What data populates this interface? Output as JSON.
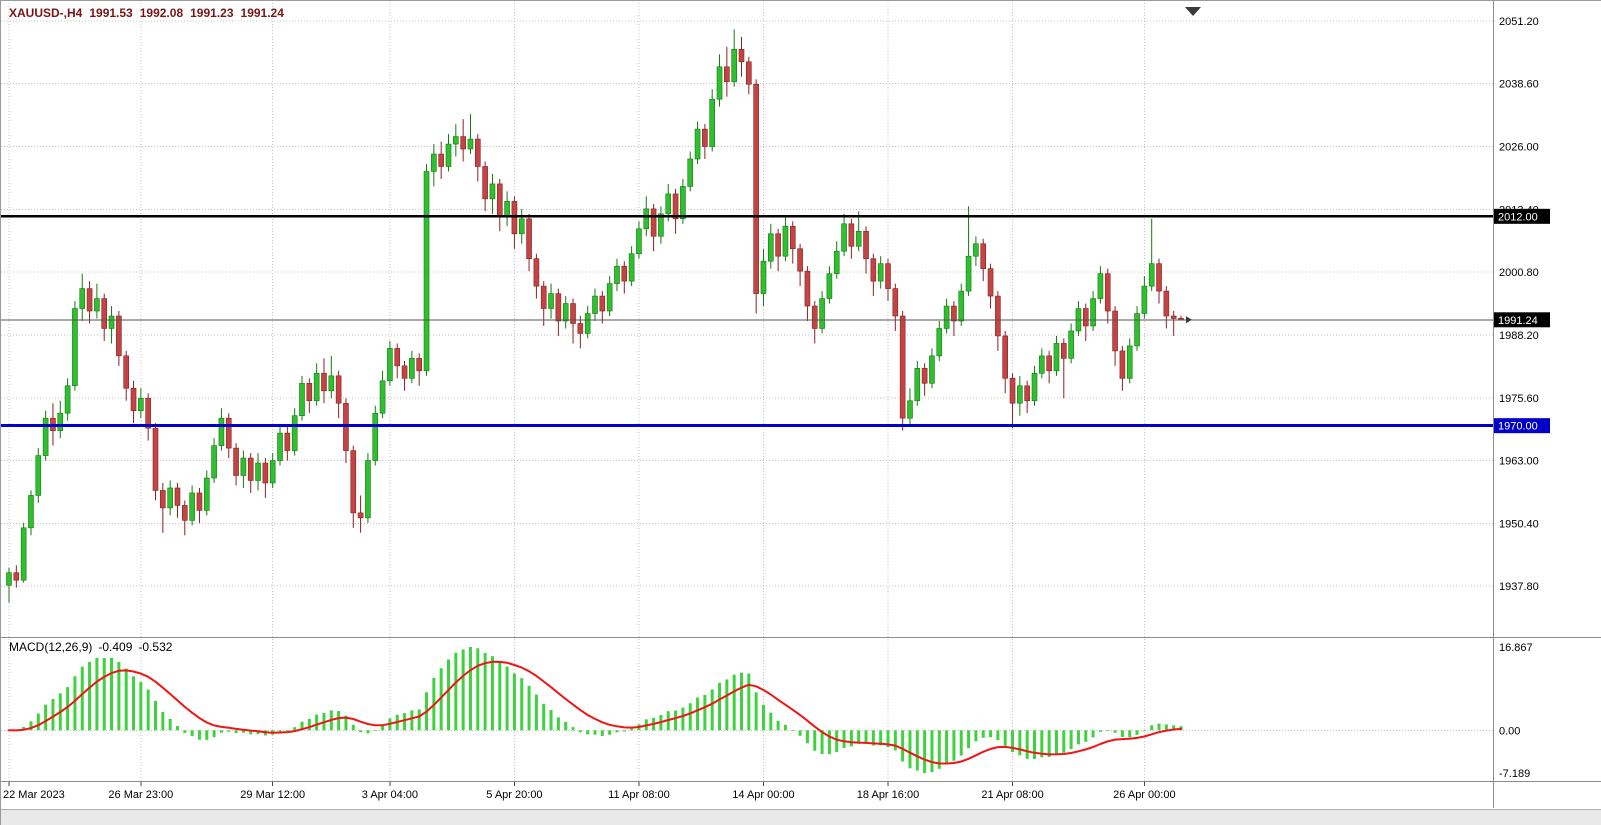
{
  "header": {
    "symbol_timeframe": "XAUUSD-,H4",
    "open": "1991.53",
    "high": "1992.08",
    "low": "1991.23",
    "close": "1991.24"
  },
  "macd_label": {
    "name": "MACD(12,26,9)",
    "value_main": "-0.409",
    "value_signal": "-0.532"
  },
  "colors": {
    "background": "#ffffff",
    "grid": "#c4c4c4",
    "bull_body": "#2fbf2f",
    "bull_edge": "#117a11",
    "bear_body": "#c24444",
    "bear_edge": "#8b2020",
    "histogram": "#3fd23f",
    "signal_line": "#f01515",
    "hline_black": "#000000",
    "hline_blue": "#0000c8",
    "badge_black": "#000000",
    "badge_blue": "#0000c8",
    "badge_text": "#ffffff",
    "axis_text": "#000000",
    "header_text": "#7a1515",
    "separator": "#8c8c8c",
    "last_price_line": "#555555",
    "marker": "#3a3a3a"
  },
  "chart_data": {
    "type": "candlestick",
    "title": "XAUUSD- H4 with MACD(12,26,9)",
    "ylim": [
      1928.0,
      2054.8
    ],
    "price_ticks": [
      {
        "value": 2051.2,
        "label": "2051.20"
      },
      {
        "value": 2038.6,
        "label": "2038.60"
      },
      {
        "value": 2026.0,
        "label": "2026.00"
      },
      {
        "value": 2013.4,
        "label": "2013.40"
      },
      {
        "value": 2000.8,
        "label": "2000.80"
      },
      {
        "value": 1988.2,
        "label": "1988.20"
      },
      {
        "value": 1975.6,
        "label": "1975.60"
      },
      {
        "value": 1963.0,
        "label": "1963.00"
      },
      {
        "value": 1950.4,
        "label": "1950.40"
      },
      {
        "value": 1937.8,
        "label": "1937.80"
      }
    ],
    "time_ticks": [
      {
        "text": "22 Mar 2023",
        "bar": 0
      },
      {
        "text": "26 Mar 23:00",
        "bar": 18
      },
      {
        "text": "29 Mar 12:00",
        "bar": 36
      },
      {
        "text": "3 Apr 04:00",
        "bar": 52
      },
      {
        "text": "5 Apr 20:00",
        "bar": 69
      },
      {
        "text": "11 Apr 08:00",
        "bar": 86
      },
      {
        "text": "14 Apr 00:00",
        "bar": 103
      },
      {
        "text": "18 Apr 16:00",
        "bar": 120
      },
      {
        "text": "21 Apr 08:00",
        "bar": 137
      },
      {
        "text": "26 Apr 00:00",
        "bar": 155
      }
    ],
    "hlines": [
      {
        "value": 2012.0,
        "label": "2012.00",
        "color": "#000000",
        "width": 2.5
      },
      {
        "value": 1970.0,
        "label": "1970.00",
        "color": "#0000c8",
        "width": 3
      }
    ],
    "last_price": {
      "value": 1991.24,
      "label": "1991.24"
    },
    "indicator": {
      "name": "MACD",
      "params": [
        12,
        26,
        9
      ],
      "label": "MACD(12,26,9)",
      "axis_tick_labels": [
        "16.867",
        "0.00",
        "-7.189"
      ],
      "last_values": [
        -0.409,
        -0.532
      ]
    },
    "ohlc": [
      [
        1938.0,
        1941.5,
        1934.5,
        1940.5
      ],
      [
        1940.5,
        1942.0,
        1937.5,
        1939.0
      ],
      [
        1939.0,
        1950.5,
        1938.5,
        1949.5
      ],
      [
        1949.5,
        1957.0,
        1948.0,
        1956.0
      ],
      [
        1956.0,
        1965.5,
        1954.5,
        1964.0
      ],
      [
        1964.0,
        1973.0,
        1963.0,
        1971.5
      ],
      [
        1971.5,
        1974.5,
        1966.0,
        1969.0
      ],
      [
        1969.0,
        1975.0,
        1967.5,
        1972.5
      ],
      [
        1972.5,
        1979.5,
        1971.0,
        1978.0
      ],
      [
        1978.0,
        1995.0,
        1977.0,
        1993.5
      ],
      [
        1993.5,
        2000.5,
        1991.0,
        1997.5
      ],
      [
        1997.5,
        1999.0,
        1990.5,
        1993.0
      ],
      [
        1993.0,
        1998.5,
        1991.5,
        1995.5
      ],
      [
        1995.5,
        1996.5,
        1987.0,
        1989.5
      ],
      [
        1989.5,
        1994.0,
        1986.5,
        1992.0
      ],
      [
        1992.0,
        1993.0,
        1982.0,
        1984.0
      ],
      [
        1984.0,
        1985.0,
        1975.0,
        1977.5
      ],
      [
        1977.5,
        1979.0,
        1970.5,
        1973.0
      ],
      [
        1973.0,
        1977.5,
        1971.5,
        1975.5
      ],
      [
        1975.5,
        1976.5,
        1967.0,
        1969.5
      ],
      [
        1969.5,
        1970.5,
        1955.0,
        1957.0
      ],
      [
        1957.0,
        1958.5,
        1948.5,
        1953.5
      ],
      [
        1953.5,
        1959.0,
        1952.0,
        1957.5
      ],
      [
        1957.5,
        1958.5,
        1951.5,
        1954.0
      ],
      [
        1954.0,
        1955.0,
        1948.0,
        1951.0
      ],
      [
        1951.0,
        1958.0,
        1950.0,
        1956.5
      ],
      [
        1956.5,
        1957.5,
        1950.5,
        1953.0
      ],
      [
        1953.0,
        1961.0,
        1952.0,
        1959.5
      ],
      [
        1959.5,
        1967.5,
        1958.5,
        1966.0
      ],
      [
        1966.0,
        1973.5,
        1965.0,
        1971.5
      ],
      [
        1971.5,
        1972.5,
        1963.5,
        1965.5
      ],
      [
        1965.5,
        1966.5,
        1958.0,
        1960.0
      ],
      [
        1960.0,
        1965.0,
        1957.5,
        1963.5
      ],
      [
        1963.5,
        1964.5,
        1956.5,
        1959.0
      ],
      [
        1959.0,
        1964.5,
        1957.0,
        1962.5
      ],
      [
        1962.5,
        1963.5,
        1955.5,
        1958.5
      ],
      [
        1958.5,
        1964.5,
        1957.5,
        1963.0
      ],
      [
        1963.0,
        1970.0,
        1962.0,
        1968.5
      ],
      [
        1968.5,
        1970.0,
        1963.0,
        1965.0
      ],
      [
        1965.0,
        1973.5,
        1964.0,
        1972.0
      ],
      [
        1972.0,
        1980.0,
        1971.0,
        1978.5
      ],
      [
        1978.5,
        1979.5,
        1972.5,
        1975.0
      ],
      [
        1975.0,
        1982.5,
        1974.0,
        1980.5
      ],
      [
        1980.5,
        1983.5,
        1974.5,
        1977.0
      ],
      [
        1977.0,
        1984.0,
        1975.5,
        1980.0
      ],
      [
        1980.0,
        1981.0,
        1971.5,
        1974.5
      ],
      [
        1974.5,
        1975.5,
        1962.5,
        1965.0
      ],
      [
        1965.0,
        1966.0,
        1949.5,
        1952.5
      ],
      [
        1952.5,
        1956.0,
        1948.5,
        1951.5
      ],
      [
        1951.5,
        1964.5,
        1950.5,
        1963.0
      ],
      [
        1963.0,
        1974.0,
        1962.0,
        1972.5
      ],
      [
        1972.5,
        1981.0,
        1971.5,
        1979.0
      ],
      [
        1979.0,
        1987.0,
        1978.0,
        1985.5
      ],
      [
        1985.5,
        1986.5,
        1979.5,
        1982.0
      ],
      [
        1982.0,
        1983.0,
        1977.0,
        1979.5
      ],
      [
        1979.5,
        1985.0,
        1978.5,
        1983.5
      ],
      [
        1983.5,
        1984.5,
        1978.0,
        1981.0
      ],
      [
        1981.0,
        2022.5,
        1980.0,
        2021.0
      ],
      [
        2021.0,
        2026.5,
        2018.0,
        2024.5
      ],
      [
        2024.5,
        2027.0,
        2019.5,
        2022.0
      ],
      [
        2022.0,
        2028.5,
        2021.0,
        2026.5
      ],
      [
        2026.5,
        2030.5,
        2024.0,
        2028.0
      ],
      [
        2028.0,
        2031.5,
        2023.0,
        2025.5
      ],
      [
        2025.5,
        2032.5,
        2024.5,
        2027.5
      ],
      [
        2027.5,
        2028.5,
        2019.0,
        2022.0
      ],
      [
        2022.0,
        2023.0,
        2013.0,
        2015.5
      ],
      [
        2015.5,
        2020.5,
        2012.5,
        2018.5
      ],
      [
        2018.5,
        2019.5,
        2009.0,
        2012.0
      ],
      [
        2012.0,
        2017.0,
        2010.0,
        2015.0
      ],
      [
        2015.0,
        2016.0,
        2005.5,
        2008.5
      ],
      [
        2008.5,
        2013.5,
        2006.5,
        2011.5
      ],
      [
        2011.5,
        2012.5,
        2001.0,
        2003.5
      ],
      [
        2003.5,
        2004.5,
        1995.5,
        1998.0
      ],
      [
        1998.0,
        1999.0,
        1990.0,
        1993.5
      ],
      [
        1993.5,
        1998.5,
        1991.5,
        1996.5
      ],
      [
        1996.5,
        1997.5,
        1988.0,
        1991.0
      ],
      [
        1991.0,
        1996.0,
        1989.5,
        1994.5
      ],
      [
        1994.5,
        1995.5,
        1986.5,
        1990.5
      ],
      [
        1990.5,
        1992.0,
        1985.5,
        1988.5
      ],
      [
        1988.5,
        1994.0,
        1987.5,
        1992.5
      ],
      [
        1992.5,
        1997.5,
        1991.0,
        1996.0
      ],
      [
        1996.0,
        1997.0,
        1990.5,
        1993.0
      ],
      [
        1993.0,
        2000.0,
        1992.0,
        1998.5
      ],
      [
        1998.5,
        2003.5,
        1997.0,
        2002.0
      ],
      [
        2002.0,
        2003.0,
        1996.5,
        1999.0
      ],
      [
        1999.0,
        2006.0,
        1998.0,
        2004.5
      ],
      [
        2004.5,
        2011.0,
        2003.5,
        2009.5
      ],
      [
        2009.5,
        2016.0,
        2008.0,
        2013.5
      ],
      [
        2013.5,
        2014.5,
        2005.0,
        2008.0
      ],
      [
        2008.0,
        2014.0,
        2006.5,
        2012.5
      ],
      [
        2012.5,
        2018.5,
        2011.0,
        2016.5
      ],
      [
        2016.5,
        2017.5,
        2008.5,
        2011.5
      ],
      [
        2011.5,
        2019.5,
        2010.5,
        2018.0
      ],
      [
        2018.0,
        2025.0,
        2017.0,
        2023.5
      ],
      [
        2023.5,
        2031.0,
        2022.5,
        2029.5
      ],
      [
        2029.5,
        2030.5,
        2023.5,
        2026.0
      ],
      [
        2026.0,
        2037.5,
        2025.0,
        2035.5
      ],
      [
        2035.5,
        2044.5,
        2034.0,
        2042.0
      ],
      [
        2042.0,
        2046.0,
        2036.0,
        2039.0
      ],
      [
        2039.0,
        2049.5,
        2038.0,
        2045.5
      ],
      [
        2045.5,
        2048.0,
        2040.0,
        2043.0
      ],
      [
        2043.0,
        2044.0,
        2036.5,
        2038.5
      ],
      [
        2038.5,
        2039.5,
        1992.5,
        1996.5
      ],
      [
        1996.5,
        2005.5,
        1994.0,
        2003.0
      ],
      [
        2003.0,
        2010.5,
        2001.5,
        2008.5
      ],
      [
        2008.5,
        2009.5,
        2001.0,
        2004.0
      ],
      [
        2004.0,
        2012.0,
        2003.0,
        2010.0
      ],
      [
        2010.0,
        2011.0,
        2002.5,
        2005.5
      ],
      [
        2005.5,
        2006.5,
        1998.0,
        2001.0
      ],
      [
        2001.0,
        2002.0,
        1991.0,
        1994.0
      ],
      [
        1994.0,
        1995.0,
        1986.5,
        1989.5
      ],
      [
        1989.5,
        1997.0,
        1988.5,
        1995.5
      ],
      [
        1995.5,
        2002.0,
        1994.5,
        2000.5
      ],
      [
        2000.5,
        2007.0,
        1999.5,
        2005.0
      ],
      [
        2005.0,
        2012.5,
        2004.0,
        2010.5
      ],
      [
        2010.5,
        2011.5,
        2003.5,
        2006.0
      ],
      [
        2006.0,
        2013.0,
        2005.0,
        2009.0
      ],
      [
        2009.0,
        2010.0,
        2000.5,
        2003.5
      ],
      [
        2003.5,
        2004.5,
        1996.0,
        1999.0
      ],
      [
        1999.0,
        2004.0,
        1997.5,
        2002.5
      ],
      [
        2002.5,
        2003.5,
        1995.0,
        1997.5
      ],
      [
        1997.5,
        1998.5,
        1989.0,
        1992.0
      ],
      [
        1992.0,
        1993.0,
        1969.0,
        1971.5
      ],
      [
        1971.5,
        1977.5,
        1970.0,
        1975.0
      ],
      [
        1975.0,
        1983.0,
        1974.0,
        1981.5
      ],
      [
        1981.5,
        1982.5,
        1976.0,
        1978.5
      ],
      [
        1978.5,
        1985.5,
        1977.5,
        1984.0
      ],
      [
        1984.0,
        1991.0,
        1983.0,
        1989.5
      ],
      [
        1989.5,
        1995.5,
        1988.5,
        1994.0
      ],
      [
        1994.0,
        1995.0,
        1988.0,
        1991.0
      ],
      [
        1991.0,
        1998.5,
        1990.0,
        1997.0
      ],
      [
        1997.0,
        2014.0,
        1996.0,
        2004.0
      ],
      [
        2004.0,
        2008.0,
        2002.0,
        2006.5
      ],
      [
        2006.5,
        2007.5,
        1999.0,
        2001.5
      ],
      [
        2001.5,
        2002.5,
        1993.5,
        1996.0
      ],
      [
        1996.0,
        1997.0,
        1985.0,
        1988.0
      ],
      [
        1988.0,
        1989.0,
        1976.5,
        1979.5
      ],
      [
        1979.5,
        1980.5,
        1969.5,
        1974.5
      ],
      [
        1974.5,
        1980.0,
        1972.0,
        1978.0
      ],
      [
        1978.0,
        1979.0,
        1972.5,
        1975.0
      ],
      [
        1975.0,
        1982.0,
        1974.0,
        1980.5
      ],
      [
        1980.5,
        1985.5,
        1979.5,
        1984.0
      ],
      [
        1984.0,
        1985.0,
        1978.5,
        1981.0
      ],
      [
        1981.0,
        1988.0,
        1980.0,
        1986.5
      ],
      [
        1986.5,
        1987.5,
        1975.5,
        1983.5
      ],
      [
        1983.5,
        1990.5,
        1982.5,
        1989.0
      ],
      [
        1989.0,
        1995.0,
        1988.0,
        1993.5
      ],
      [
        1993.5,
        1994.5,
        1987.0,
        1990.0
      ],
      [
        1990.0,
        1997.0,
        1989.0,
        1995.5
      ],
      [
        1995.5,
        2002.0,
        1994.5,
        2000.5
      ],
      [
        2000.5,
        2001.5,
        1990.5,
        1993.0
      ],
      [
        1993.0,
        1994.0,
        1982.0,
        1985.0
      ],
      [
        1985.0,
        1986.0,
        1977.0,
        1979.5
      ],
      [
        1979.5,
        1987.5,
        1978.5,
        1986.0
      ],
      [
        1986.0,
        1994.0,
        1985.0,
        1992.5
      ],
      [
        1992.5,
        2000.0,
        1991.5,
        1998.0
      ],
      [
        1998.0,
        2011.5,
        1997.0,
        2002.5
      ],
      [
        2002.5,
        2003.5,
        1994.5,
        1997.0
      ],
      [
        1997.0,
        1998.0,
        1989.5,
        1992.0
      ],
      [
        1992.0,
        1993.0,
        1988.0,
        1991.5
      ],
      [
        1991.53,
        1992.08,
        1991.23,
        1991.24
      ]
    ]
  }
}
